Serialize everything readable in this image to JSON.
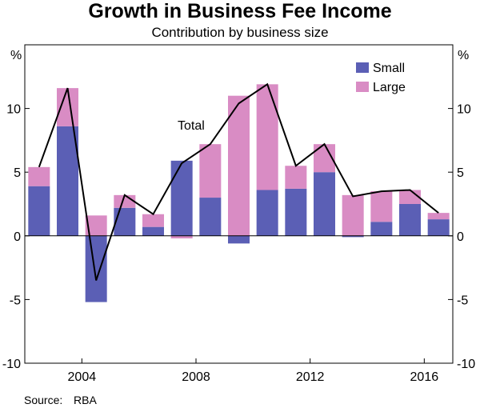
{
  "chart_data": {
    "type": "bar",
    "title": "Growth in Business Fee Income",
    "subtitle": "Contribution by business size",
    "ylabel_left": "%",
    "ylabel_right": "%",
    "ylim": [
      -10,
      15
    ],
    "yticks": [
      -10,
      -5,
      0,
      5,
      10
    ],
    "ytick_labels": [
      "-10",
      "-5",
      "0",
      "5",
      "10"
    ],
    "x_range": [
      2002,
      2017
    ],
    "xticks": [
      2004,
      2008,
      2012,
      2016
    ],
    "xtick_labels": [
      "2004",
      "2008",
      "2012",
      "2016"
    ],
    "years": [
      2002,
      2003,
      2004,
      2005,
      2006,
      2007,
      2008,
      2009,
      2010,
      2011,
      2012,
      2013,
      2014,
      2015,
      2016
    ],
    "series": [
      {
        "name": "Small",
        "color": "#5b5fb5",
        "values": [
          3.9,
          8.6,
          -5.2,
          2.2,
          0.7,
          5.9,
          3.0,
          -0.6,
          3.6,
          3.7,
          5.0,
          -0.1,
          1.1,
          2.5,
          1.3
        ]
      },
      {
        "name": "Large",
        "color": "#d98cc4",
        "values": [
          1.5,
          3.0,
          1.6,
          1.0,
          1.0,
          -0.2,
          4.2,
          11.0,
          8.3,
          1.8,
          2.2,
          3.2,
          2.4,
          1.1,
          0.5
        ]
      }
    ],
    "total": {
      "name": "Total",
      "color": "#000000",
      "values": [
        5.4,
        11.6,
        -3.5,
        3.2,
        1.7,
        5.7,
        7.2,
        10.4,
        11.9,
        5.5,
        7.2,
        3.1,
        3.5,
        3.6,
        1.8
      ]
    },
    "legend": [
      "Small",
      "Large"
    ],
    "legend_position": "top-right",
    "annotation": "Total"
  },
  "source": {
    "label": "Source:",
    "value": "RBA"
  }
}
